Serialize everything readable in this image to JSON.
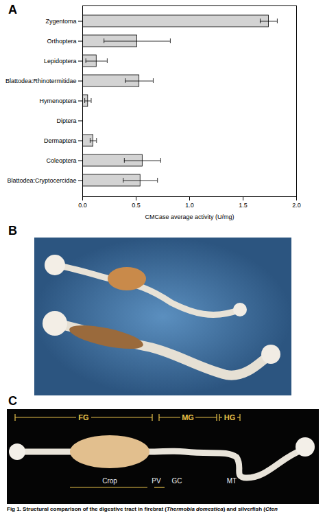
{
  "chart_data": {
    "type": "bar",
    "orientation": "horizontal",
    "categories": [
      "Zygentoma",
      "Orthoptera",
      "Lepidoptera",
      "Blattodea:Rhinotermitidae",
      "Hymenoptera",
      "Diptera",
      "Dermaptera",
      "Coleoptera",
      "Blattodea:Cryptocercidae"
    ],
    "values": [
      1.74,
      0.51,
      0.13,
      0.53,
      0.05,
      0,
      0.1,
      0.56,
      0.54
    ],
    "errors": [
      0.08,
      0.31,
      0.1,
      0.13,
      0.03,
      0,
      0.03,
      0.17,
      0.16
    ],
    "color": "#d3d3d3",
    "x_label": "CMCase average activity (U/mg)",
    "xlim": [
      0,
      2
    ],
    "xticks": [
      {
        "value": 0,
        "label": "0.0"
      },
      {
        "value": 0.5,
        "label": "0.5"
      },
      {
        "value": 1,
        "label": "1.0"
      },
      {
        "value": 1.5,
        "label": "1.5"
      },
      {
        "value": 2,
        "label": "2.0"
      }
    ],
    "grid": false
  },
  "panel_labels": [
    "A",
    "B",
    "C"
  ],
  "panel_c": {
    "regions": [
      "FG",
      "MG",
      "HG"
    ],
    "parts": [
      "Crop",
      "PV",
      "GC",
      "MT"
    ]
  },
  "caption": [
    "Fig 1. Structural comparison of the digestive tract in firebrat (",
    "Thermobia domestica",
    ") and silverfish (",
    "Cten"
  ]
}
